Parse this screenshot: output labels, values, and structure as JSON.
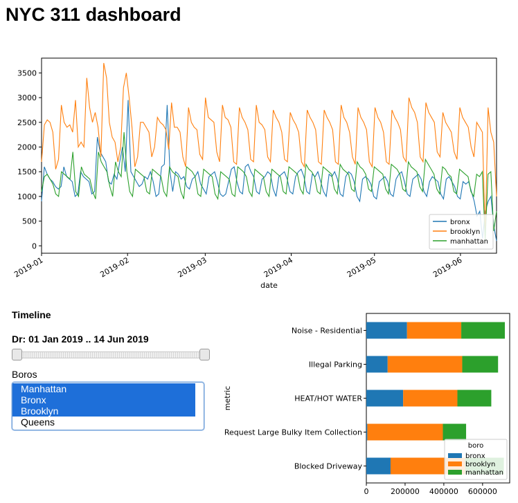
{
  "page": {
    "title": "NYC 311 dashboard"
  },
  "timeline_panel": {
    "heading": "Timeline",
    "date_range_prefix": "Dr:",
    "date_range_value": "01 Jan 2019 .. 14 Jun 2019",
    "slider": {
      "start_fraction": 0.0,
      "end_fraction": 1.0
    },
    "boros_label": "Boros",
    "boros_options": [
      {
        "label": "Manhattan",
        "selected": true
      },
      {
        "label": "Bronx",
        "selected": true
      },
      {
        "label": "Brooklyn",
        "selected": true
      },
      {
        "label": "Queens",
        "selected": false
      }
    ]
  },
  "colors": {
    "bronx": "#1f77b4",
    "brooklyn": "#ff7f0e",
    "manhattan": "#2ca02c",
    "selection": "#1e6fd9"
  },
  "chart_data": [
    {
      "type": "line",
      "title": "",
      "xlabel": "date",
      "ylabel": "",
      "x_tick_labels": [
        "2019-01",
        "2019-02",
        "2019-03",
        "2019-04",
        "2019-05",
        "2019-06"
      ],
      "y_ticks": [
        0,
        500,
        1000,
        1500,
        2000,
        2500,
        3000,
        3500
      ],
      "xlim": [
        "2019-01-01",
        "2019-06-14"
      ],
      "ylim": [
        -150,
        3800
      ],
      "legend_position": "lower-right",
      "grid": false,
      "series": [
        {
          "name": "bronx",
          "color": "#1f77b4",
          "values": [
            900,
            1600,
            1450,
            1350,
            1300,
            1200,
            1150,
            1200,
            1600,
            1400,
            1350,
            1300,
            1000,
            1050,
            1500,
            1400,
            1350,
            1300,
            1050,
            1100,
            2200,
            1900,
            1800,
            1700,
            1300,
            1250,
            1450,
            1350,
            1700,
            2000,
            1500,
            2950,
            1500,
            1400,
            1300,
            1200,
            1250,
            1400,
            1350,
            1500,
            1300,
            1000,
            1050,
            1600,
            1650,
            2850,
            1500,
            1100,
            1500,
            1450,
            1350,
            1400,
            1200,
            1150,
            1350,
            1400,
            1500,
            1250,
            1150,
            1050,
            1400,
            1450,
            1500,
            1300,
            1050,
            1000,
            1050,
            1300,
            1550,
            1600,
            1300,
            1100,
            1050,
            1600,
            1650,
            1500,
            1400,
            1100,
            1050,
            1350,
            1400,
            1500,
            1450,
            1150,
            1000,
            1400,
            1450,
            1500,
            1350,
            1100,
            1050,
            1400,
            1500,
            1550,
            1400,
            1100,
            1050,
            1450,
            1400,
            1500,
            1300,
            1100,
            1000,
            1450,
            1400,
            1500,
            1350,
            1050,
            1000,
            1400,
            1500,
            1450,
            1300,
            1000,
            900,
            1350,
            1400,
            1350,
            1250,
            1000,
            950,
            1300,
            1350,
            1400,
            1300,
            1050,
            1000,
            1350,
            1450,
            1500,
            1300,
            1050,
            1000,
            1350,
            1400,
            1450,
            1350,
            1100,
            1000,
            1300,
            1400,
            1350,
            1300,
            1050,
            950,
            1350,
            1400,
            1300,
            1200,
            1000,
            950,
            1300,
            1250,
            1300,
            1100,
            900,
            600,
            700,
            150,
            700,
            900,
            1000,
            400,
            100
          ]
        },
        {
          "name": "brooklyn",
          "color": "#ff7f0e",
          "values": [
            1700,
            2450,
            2550,
            2500,
            2300,
            1550,
            1750,
            2850,
            2500,
            2400,
            2450,
            2300,
            2950,
            2000,
            2100,
            2000,
            3400,
            2800,
            2500,
            2700,
            2400,
            1800,
            3700,
            3400,
            2500,
            2200,
            2100,
            1700,
            2000,
            3200,
            3500,
            3000,
            2400,
            1600,
            1800,
            2500,
            2500,
            2400,
            2300,
            1800,
            2000,
            2600,
            2500,
            2450,
            2350,
            1950,
            2900,
            2400,
            2400,
            2300,
            1800,
            1600,
            2800,
            2500,
            2400,
            2350,
            1850,
            1750,
            3000,
            2600,
            2550,
            2500,
            1900,
            1700,
            2850,
            2600,
            2550,
            2400,
            1700,
            1650,
            2800,
            2600,
            2500,
            2350,
            1750,
            1700,
            2850,
            2500,
            2450,
            2350,
            1800,
            1700,
            2750,
            2600,
            2500,
            2300,
            1750,
            1700,
            2700,
            2550,
            2450,
            2300,
            1700,
            1600,
            2750,
            2600,
            2500,
            2350,
            1700,
            1650,
            2750,
            2600,
            2500,
            2350,
            1700,
            1650,
            2850,
            2600,
            2500,
            2300,
            1800,
            1650,
            2800,
            2600,
            2500,
            2350,
            1700,
            1600,
            2800,
            2600,
            2500,
            2300,
            1700,
            1650,
            2750,
            2600,
            2500,
            2350,
            1800,
            1700,
            3000,
            2800,
            2700,
            2500,
            1800,
            1700,
            2900,
            2700,
            2600,
            2500,
            1900,
            1800,
            2700,
            2500,
            2400,
            2300,
            1900,
            1750,
            2800,
            2600,
            2500,
            2400,
            2000,
            1800,
            2500,
            2400,
            2300,
            200,
            2800,
            2300,
            2100,
            1000
          ]
        },
        {
          "name": "manhattan",
          "color": "#2ca02c",
          "values": [
            1100,
            1400,
            1450,
            1350,
            1250,
            1050,
            1000,
            1500,
            1450,
            1400,
            1350,
            1900,
            1100,
            1000,
            1600,
            1450,
            1400,
            1350,
            1100,
            950,
            1900,
            1700,
            1600,
            1500,
            1200,
            1000,
            1700,
            1500,
            1400,
            2300,
            1500,
            1100,
            1000,
            1550,
            1500,
            1450,
            1400,
            1100,
            1050,
            1550,
            1500,
            1450,
            1400,
            1100,
            1000,
            1600,
            1500,
            1450,
            1400,
            1100,
            950,
            1600,
            1550,
            1500,
            1400,
            1050,
            1000,
            1550,
            1500,
            1450,
            1400,
            1050,
            950,
            1500,
            1450,
            1400,
            1350,
            1050,
            1000,
            1600,
            1550,
            1500,
            1400,
            1100,
            1000,
            1550,
            1500,
            1450,
            1400,
            1100,
            1000,
            1550,
            1500,
            1450,
            1400,
            1100,
            1050,
            1600,
            1550,
            1500,
            1450,
            1150,
            1050,
            1650,
            1550,
            1500,
            1400,
            1100,
            1050,
            1600,
            1550,
            1500,
            1450,
            1150,
            1050,
            1650,
            1550,
            1500,
            1450,
            1150,
            1100,
            1700,
            1600,
            1550,
            1450,
            1150,
            1100,
            1600,
            1550,
            1500,
            1450,
            1150,
            1050,
            1650,
            1600,
            1550,
            1450,
            1150,
            1100,
            1700,
            1600,
            1550,
            1500,
            1200,
            1100,
            1750,
            1650,
            1550,
            1450,
            1150,
            1050,
            1600,
            1550,
            1450,
            1400,
            1100,
            1050,
            1550,
            1500,
            1450,
            1400,
            1100,
            1000,
            1450,
            1400,
            1500,
            100,
            1450,
            1500,
            300,
            700
          ]
        }
      ]
    },
    {
      "type": "bar",
      "orientation": "horizontal",
      "stacked": true,
      "title": "",
      "xlabel": "",
      "ylabel": "metric",
      "categories": [
        "Noise - Residential",
        "Illegal Parking",
        "HEAT/HOT WATER",
        "Request Large Bulky Item Collection",
        "Blocked Driveway"
      ],
      "x_ticks": [
        0,
        200000,
        400000,
        600000
      ],
      "xlim": [
        0,
        740000
      ],
      "legend_title": "boro",
      "legend_position": "lower-right",
      "series": [
        {
          "name": "bronx",
          "color": "#1f77b4",
          "values": [
            210000,
            110000,
            190000,
            5000,
            125000
          ]
        },
        {
          "name": "brooklyn",
          "color": "#ff7f0e",
          "values": [
            280000,
            385000,
            280000,
            390000,
            385000
          ]
        },
        {
          "name": "manhattan",
          "color": "#2ca02c",
          "values": [
            225000,
            185000,
            175000,
            120000,
            200000
          ]
        }
      ]
    }
  ]
}
